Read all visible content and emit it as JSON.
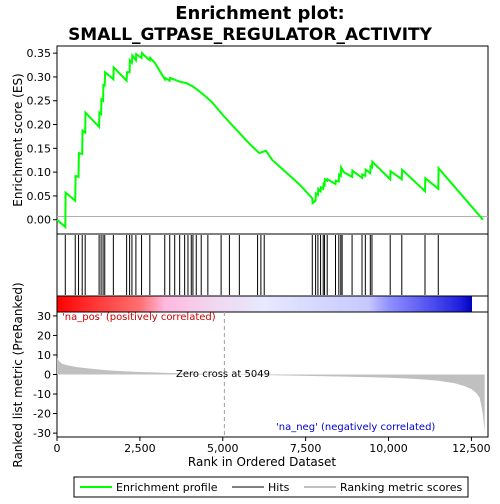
{
  "chart_data": {
    "type": "line",
    "title_line1": "Enrichment plot:",
    "title_line2": "SMALL_GTPASE_REGULATOR_ACTIVITY",
    "top_panel": {
      "ylabel": "Enrichment score (ES)",
      "ylim": [
        -0.03,
        0.365
      ],
      "yticks": [
        0.0,
        0.05,
        0.1,
        0.15,
        0.2,
        0.25,
        0.3,
        0.35
      ],
      "ytick_labels": [
        "0.00",
        "0.05",
        "0.10",
        "0.15",
        "0.20",
        "0.25",
        "0.30",
        "0.35"
      ],
      "color": "#00ff00",
      "series": {
        "name": "Enrichment profile",
        "x": [
          0,
          250,
          260,
          550,
          560,
          650,
          660,
          760,
          770,
          850,
          860,
          1270,
          1280,
          1330,
          1340,
          1390,
          1400,
          1440,
          1450,
          1700,
          1710,
          2100,
          2110,
          2190,
          2200,
          2260,
          2270,
          2380,
          2390,
          2550,
          2560,
          2650,
          2800,
          2810,
          2950,
          3250,
          3260,
          3400,
          3410,
          3700,
          3900,
          4100,
          4200,
          4500,
          4700,
          5000,
          5400,
          5800,
          6100,
          6300,
          6500,
          6900,
          7300,
          7700,
          7710,
          7800,
          7810,
          7870,
          7880,
          7950,
          7960,
          8030,
          8040,
          8070,
          8080,
          8150,
          8160,
          8400,
          8410,
          8500,
          8510,
          8560,
          8570,
          8650,
          8900,
          8910,
          9200,
          9210,
          9300,
          9310,
          9450,
          9460,
          9500,
          9510,
          10050,
          10060,
          10400,
          10410,
          11100,
          11110,
          11500,
          11510,
          12850
        ],
        "y": [
          0.0,
          -0.015,
          0.057,
          0.04,
          0.092,
          0.09,
          0.14,
          0.138,
          0.187,
          0.183,
          0.225,
          0.195,
          0.225,
          0.222,
          0.253,
          0.25,
          0.283,
          0.282,
          0.31,
          0.295,
          0.32,
          0.292,
          0.31,
          0.31,
          0.335,
          0.33,
          0.345,
          0.335,
          0.348,
          0.34,
          0.35,
          0.344,
          0.335,
          0.34,
          0.33,
          0.295,
          0.298,
          0.292,
          0.298,
          0.29,
          0.287,
          0.28,
          0.275,
          0.258,
          0.245,
          0.22,
          0.19,
          0.16,
          0.14,
          0.145,
          0.125,
          0.1,
          0.075,
          0.045,
          0.035,
          0.04,
          0.055,
          0.052,
          0.065,
          0.06,
          0.068,
          0.065,
          0.075,
          0.073,
          0.085,
          0.082,
          0.085,
          0.075,
          0.082,
          0.08,
          0.095,
          0.092,
          0.11,
          0.1,
          0.09,
          0.103,
          0.088,
          0.095,
          0.092,
          0.105,
          0.098,
          0.112,
          0.11,
          0.122,
          0.085,
          0.102,
          0.085,
          0.105,
          0.06,
          0.087,
          0.065,
          0.108,
          0.0
        ]
      }
    },
    "hits_panel": {
      "label": "Hits",
      "positions": [
        250,
        550,
        650,
        760,
        850,
        1270,
        1330,
        1390,
        1440,
        1700,
        2100,
        2190,
        2260,
        2380,
        2550,
        2800,
        3250,
        3400,
        3550,
        3700,
        3850,
        3950,
        4050,
        4100,
        4200,
        4350,
        4550,
        4950,
        5200,
        5500,
        6050,
        6150,
        6250,
        7700,
        7800,
        7870,
        7950,
        8030,
        8070,
        8150,
        8400,
        8500,
        8560,
        8600,
        8900,
        9200,
        9300,
        9450,
        9500,
        10050,
        10400,
        11100,
        11500
      ]
    },
    "metric_panel": {
      "ylabel": "Ranked list metric (PreRanked)",
      "ylim": [
        -32,
        32
      ],
      "yticks": [
        30,
        20,
        10,
        0,
        -10,
        -20,
        -30
      ],
      "ytick_labels": [
        "30",
        "20",
        "10",
        "0",
        "-10",
        "-20",
        "-30"
      ],
      "fill_color": "#c0c0c0",
      "series": {
        "name": "Ranking metric scores",
        "x": [
          0,
          50,
          150,
          300,
          600,
          1000,
          1500,
          2000,
          2500,
          3000,
          3500,
          4000,
          4500,
          5049,
          5500,
          6500,
          7500,
          8500,
          9500,
          10500,
          11000,
          11500,
          12000,
          12300,
          12500,
          12650,
          12750,
          12800,
          12850,
          12880,
          12900
        ],
        "y": [
          8.5,
          7.0,
          5.5,
          4.8,
          3.8,
          3.0,
          2.2,
          1.7,
          1.3,
          1.0,
          0.7,
          0.5,
          0.3,
          0.0,
          -0.2,
          -0.4,
          -0.7,
          -1.0,
          -1.4,
          -2.0,
          -2.5,
          -3.2,
          -4.5,
          -6.0,
          -7.5,
          -9.5,
          -12.0,
          -16.0,
          -21.0,
          -26.0,
          -29.5
        ]
      },
      "zero_cross_label": "Zero cross at 5049",
      "zero_cross_x": 5049,
      "pos_label": "'na_pos' (positively correlated)",
      "neg_label": "'na_neg' (negatively correlated)",
      "pos_color": "#ff0000",
      "neg_color": "#0000ff"
    },
    "xaxis": {
      "label": "Rank in Ordered Dataset",
      "xlim": [
        0,
        13000
      ],
      "ticks": [
        0,
        2500,
        5000,
        7500,
        10000,
        12500
      ],
      "tick_labels": [
        "0",
        "2,500",
        "5,000",
        "7,500",
        "10,000",
        "12,500"
      ]
    },
    "legend": {
      "entries": [
        {
          "name": "Enrichment profile",
          "color": "#00ff00"
        },
        {
          "name": "Hits",
          "color": "#000000"
        },
        {
          "name": "Ranking metric scores",
          "color": "#c0c0c0"
        }
      ],
      "placement": "bottom"
    }
  }
}
